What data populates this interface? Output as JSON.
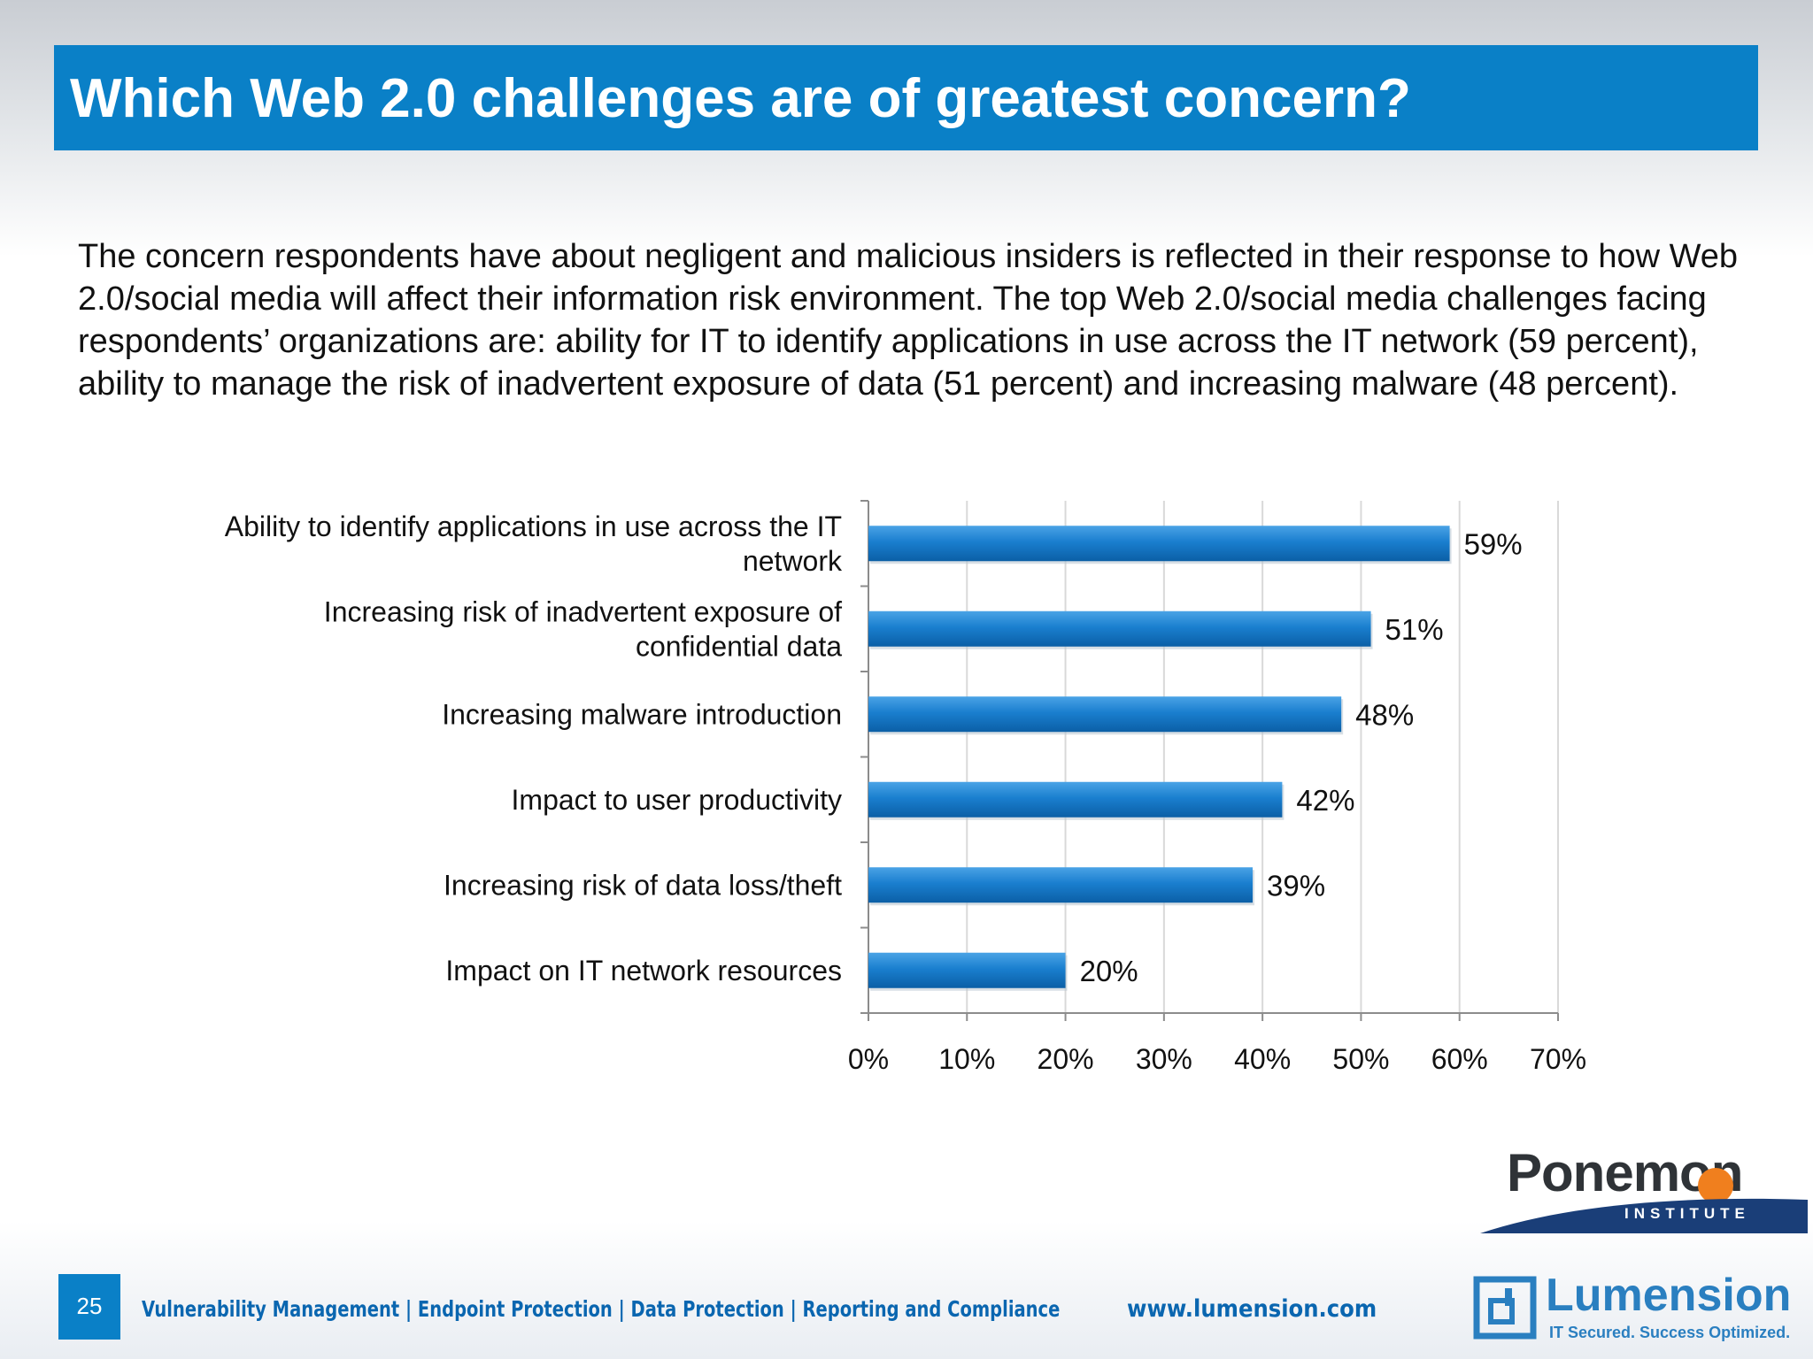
{
  "slide": {
    "title": "Which Web 2.0 challenges are of greatest concern?",
    "intro": "The concern respondents have about negligent and malicious insiders is reflected in their response to how Web 2.0/social media will affect their information risk environment. The top Web 2.0/social media challenges facing respondents’ organizations are: ability for IT to identify applications in use across the IT network (59 percent), ability to manage the risk of inadvertent exposure of data (51 percent) and increasing malware (48 percent).",
    "page_number": "25"
  },
  "footer": {
    "nav": "Vulnerability Management | Endpoint Protection | Data Protection | Reporting and Compliance",
    "url": "www.lumension.com"
  },
  "logos": {
    "ponemon_name": "Ponemon",
    "ponemon_sub": "INSTITUTE",
    "lumension_name": "Lumension",
    "lumension_tagline": "IT Secured. Success Optimized."
  },
  "colors": {
    "accent": "#0a80c7",
    "bar": "#1a7fcf",
    "ponemon_orange": "#f07f1e",
    "ponemon_navy": "#1a3e78"
  },
  "chart_data": {
    "type": "bar",
    "orientation": "horizontal",
    "categories": [
      [
        "Ability to identify applications in use across the IT",
        "network"
      ],
      [
        "Increasing risk of inadvertent exposure of",
        "confidential data"
      ],
      [
        "Increasing malware introduction"
      ],
      [
        "Impact to user productivity"
      ],
      [
        "Increasing risk of data loss/theft"
      ],
      [
        "Impact on IT network resources"
      ]
    ],
    "values": [
      59,
      51,
      48,
      42,
      39,
      20
    ],
    "value_labels": [
      "59%",
      "51%",
      "48%",
      "42%",
      "39%",
      "20%"
    ],
    "xlim": [
      0,
      70
    ],
    "x_ticks": [
      0,
      10,
      20,
      30,
      40,
      50,
      60,
      70
    ],
    "x_tick_labels": [
      "0%",
      "10%",
      "20%",
      "30%",
      "40%",
      "50%",
      "60%",
      "70%"
    ],
    "grid": true,
    "legend": "none"
  }
}
